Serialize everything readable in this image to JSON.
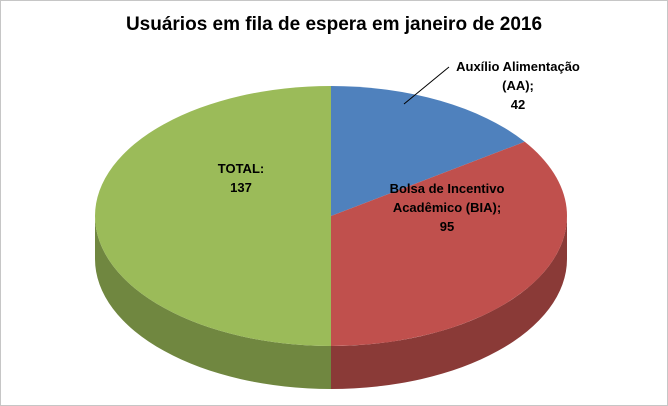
{
  "chart_data": {
    "type": "pie",
    "title": "Usuários em fila de espera em janeiro de 2016",
    "effect": "3d",
    "start_angle_deg": 0,
    "direction": "clockwise",
    "legend": "none",
    "background": "#ffffff",
    "slices": [
      {
        "name": "Auxílio Alimentação (AA)",
        "value": 42,
        "color": "#4F81BD",
        "label_lines": [
          "Auxílio Alimentação",
          "(AA);",
          "42"
        ],
        "label_position": "outside-with-leader"
      },
      {
        "name": "Bolsa de Incentivo Acadêmico (BIA)",
        "value": 95,
        "color": "#C0504D",
        "label_lines": [
          "Bolsa de Incentivo",
          "Acadêmico (BIA);",
          "95"
        ],
        "label_position": "inside"
      },
      {
        "name": "TOTAL",
        "value": 137,
        "color": "#9BBB59",
        "label_lines": [
          "TOTAL:",
          "137"
        ],
        "label_position": "inside"
      }
    ]
  }
}
